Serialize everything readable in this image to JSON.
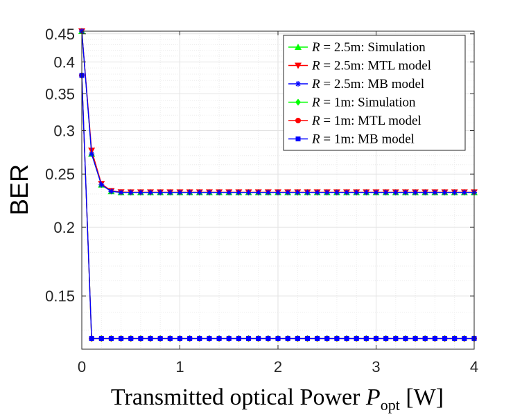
{
  "chart_data": {
    "type": "line",
    "xlabel_main": "Transmitted optical Power ",
    "xlabel_var": "P",
    "xlabel_sub": "opt",
    "xlabel_unit": " [W]",
    "ylabel": "BER",
    "xlim": [
      0,
      4
    ],
    "ylim": [
      0.12,
      0.455
    ],
    "y_scale": "log",
    "grid": true,
    "x_ticks": [
      0,
      1,
      2,
      3,
      4
    ],
    "x_tick_labels": [
      "0",
      "1",
      "2",
      "3",
      "4"
    ],
    "y_ticks": [
      0.15,
      0.2,
      0.25,
      0.3,
      0.35,
      0.4,
      0.45
    ],
    "y_tick_labels": [
      "0.15",
      "0.2",
      "0.25",
      "0.3",
      "0.35",
      "0.4",
      "0.45"
    ],
    "legend_position": "top-right",
    "x": [
      0,
      0.1,
      0.2,
      0.3,
      0.4,
      0.5,
      0.6,
      0.7,
      0.8,
      0.9,
      1.0,
      1.1,
      1.2,
      1.3,
      1.4,
      1.5,
      1.6,
      1.7,
      1.8,
      1.9,
      2.0,
      2.1,
      2.2,
      2.3,
      2.4,
      2.5,
      2.6,
      2.7,
      2.8,
      2.9,
      3.0,
      3.1,
      3.2,
      3.3,
      3.4,
      3.5,
      3.6,
      3.7,
      3.8,
      3.9,
      4.0
    ],
    "series": [
      {
        "name_var": "R",
        "name_rest": " = 2.5m:  Simulation",
        "color": "#00ff00",
        "marker": "triangle-up",
        "values": [
          0.455,
          0.272,
          0.239,
          0.2325,
          0.2315,
          0.2315,
          0.2315,
          0.2315,
          0.2315,
          0.2315,
          0.2315,
          0.2315,
          0.2315,
          0.2315,
          0.2315,
          0.2315,
          0.2315,
          0.2315,
          0.2315,
          0.2315,
          0.2315,
          0.2315,
          0.2315,
          0.2315,
          0.2315,
          0.2315,
          0.2315,
          0.2315,
          0.2315,
          0.2315,
          0.2315,
          0.2315,
          0.2315,
          0.2315,
          0.2315,
          0.2315,
          0.2315,
          0.2315,
          0.2315,
          0.2315,
          0.2315
        ]
      },
      {
        "name_var": "R",
        "name_rest": " = 2.5m:  MTL model",
        "color": "#ff0000",
        "marker": "triangle-down",
        "values": [
          0.455,
          0.276,
          0.24,
          0.233,
          0.2318,
          0.2317,
          0.2317,
          0.2317,
          0.2317,
          0.2317,
          0.2317,
          0.2317,
          0.2317,
          0.2317,
          0.2317,
          0.2317,
          0.2317,
          0.2317,
          0.2317,
          0.2317,
          0.2317,
          0.2317,
          0.2317,
          0.2317,
          0.2317,
          0.2317,
          0.2317,
          0.2317,
          0.2317,
          0.2317,
          0.2317,
          0.2317,
          0.2317,
          0.2317,
          0.2317,
          0.2317,
          0.2317,
          0.2317,
          0.2317,
          0.2317,
          0.2317
        ]
      },
      {
        "name_var": "R",
        "name_rest": " = 2.5m:  MB model",
        "color": "#0000ff",
        "marker": "asterisk",
        "values": [
          0.455,
          0.272,
          0.239,
          0.2325,
          0.2315,
          0.2315,
          0.2315,
          0.2315,
          0.2315,
          0.2315,
          0.2315,
          0.2315,
          0.2315,
          0.2315,
          0.2315,
          0.2315,
          0.2315,
          0.2315,
          0.2315,
          0.2315,
          0.2315,
          0.2315,
          0.2315,
          0.2315,
          0.2315,
          0.2315,
          0.2315,
          0.2315,
          0.2315,
          0.2315,
          0.2315,
          0.2315,
          0.2315,
          0.2315,
          0.2315,
          0.2315,
          0.2315,
          0.2315,
          0.2315,
          0.2315,
          0.2315
        ]
      },
      {
        "name_var": "R",
        "name_rest": " = 1m:  Simulation",
        "color": "#00ff00",
        "marker": "diamond",
        "values": [
          0.378,
          0.1255,
          0.1255,
          0.1255,
          0.1255,
          0.1255,
          0.1255,
          0.1255,
          0.1255,
          0.1255,
          0.1255,
          0.1255,
          0.1255,
          0.1255,
          0.1255,
          0.1255,
          0.1255,
          0.1255,
          0.1255,
          0.1255,
          0.1255,
          0.1255,
          0.1255,
          0.1255,
          0.1255,
          0.1255,
          0.1255,
          0.1255,
          0.1255,
          0.1255,
          0.1255,
          0.1255,
          0.1255,
          0.1255,
          0.1255,
          0.1255,
          0.1255,
          0.1255,
          0.1255,
          0.1255,
          0.1255
        ]
      },
      {
        "name_var": "R",
        "name_rest": " = 1m:  MTL model",
        "color": "#ff0000",
        "marker": "circle",
        "values": [
          0.378,
          0.1255,
          0.1255,
          0.1255,
          0.1255,
          0.1255,
          0.1255,
          0.1255,
          0.1255,
          0.1255,
          0.1255,
          0.1255,
          0.1255,
          0.1255,
          0.1255,
          0.1255,
          0.1255,
          0.1255,
          0.1255,
          0.1255,
          0.1255,
          0.1255,
          0.1255,
          0.1255,
          0.1255,
          0.1255,
          0.1255,
          0.1255,
          0.1255,
          0.1255,
          0.1255,
          0.1255,
          0.1255,
          0.1255,
          0.1255,
          0.1255,
          0.1255,
          0.1255,
          0.1255,
          0.1255,
          0.1255
        ]
      },
      {
        "name_var": "R",
        "name_rest": " = 1m:  MB model",
        "color": "#0000ff",
        "marker": "square",
        "values": [
          0.378,
          0.1255,
          0.1255,
          0.1255,
          0.1255,
          0.1255,
          0.1255,
          0.1255,
          0.1255,
          0.1255,
          0.1255,
          0.1255,
          0.1255,
          0.1255,
          0.1255,
          0.1255,
          0.1255,
          0.1255,
          0.1255,
          0.1255,
          0.1255,
          0.1255,
          0.1255,
          0.1255,
          0.1255,
          0.1255,
          0.1255,
          0.1255,
          0.1255,
          0.1255,
          0.1255,
          0.1255,
          0.1255,
          0.1255,
          0.1255,
          0.1255,
          0.1255,
          0.1255,
          0.1255,
          0.1255,
          0.1255
        ]
      }
    ]
  }
}
